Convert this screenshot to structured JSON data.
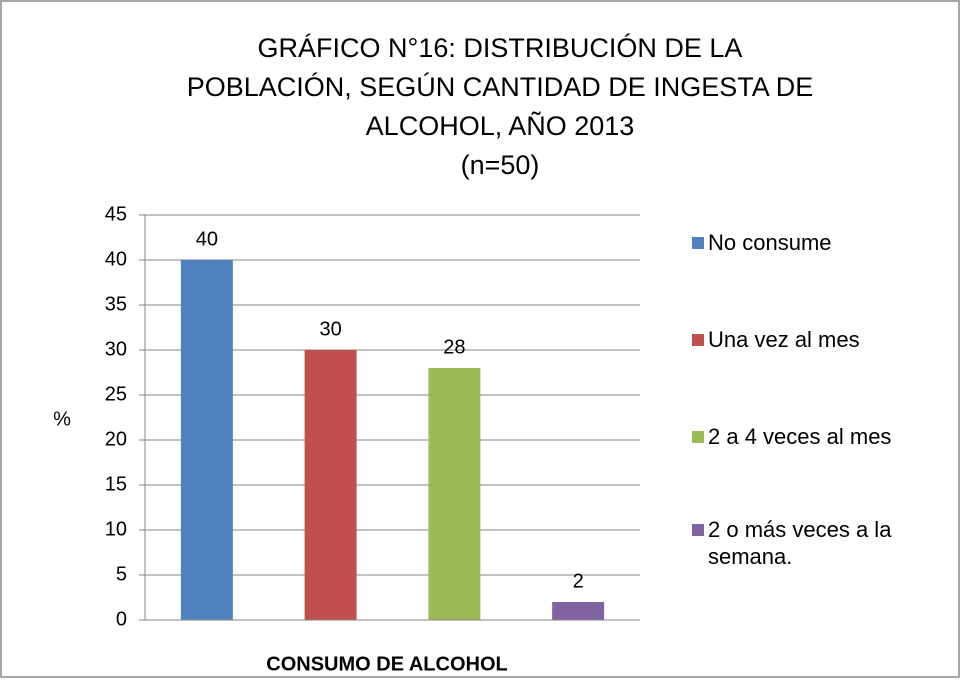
{
  "chart_data": {
    "type": "bar",
    "title": [
      "GRÁFICO N°16: DISTRIBUCIÓN DE LA",
      "POBLACIÓN, SEGÚN CANTIDAD DE INGESTA DE",
      "ALCOHOL, AÑO 2013",
      "(n=50)"
    ],
    "x_label": "CONSUMO DE ALCOHOL",
    "y_label": "%",
    "categories": [
      null
    ],
    "series": [
      {
        "name": "No consume",
        "color": "#4f81bd",
        "values": [
          40
        ]
      },
      {
        "name": "Una vez al mes",
        "color": "#c0504d",
        "values": [
          30
        ]
      },
      {
        "name": "2 a 4 veces al mes",
        "color": "#9bbb59",
        "values": [
          28
        ]
      },
      {
        "name": "2 o más veces a la semana.",
        "color": "#8064a2",
        "values": [
          2
        ]
      }
    ],
    "ylim": [
      0,
      45
    ],
    "yticks": [
      0,
      5,
      10,
      15,
      20,
      25,
      30,
      35,
      40,
      45
    ],
    "grid": true,
    "legend": "right"
  }
}
